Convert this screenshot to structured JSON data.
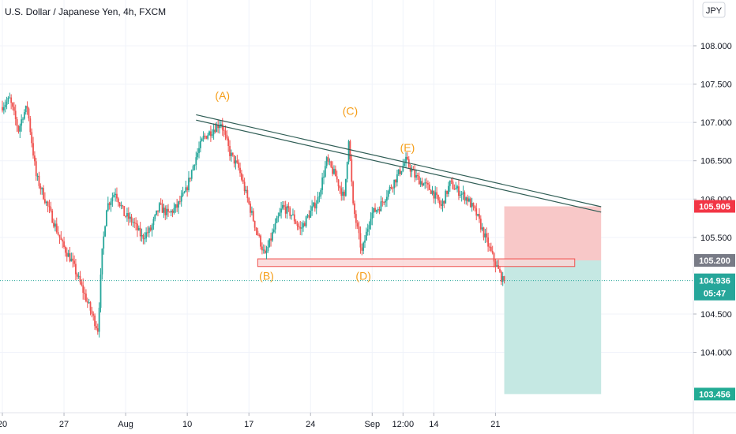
{
  "chart_data": {
    "type": "candlestick",
    "title": "U.S. Dollar / Japanese Yen, 4h, FXCM",
    "currency_label": "JPY",
    "price_axis": {
      "range": [
        103.3,
        108.35
      ],
      "ticks": [
        "108.000",
        "107.500",
        "107.000",
        "106.500",
        "106.000",
        "105.500",
        "104.500",
        "104.000"
      ]
    },
    "time_axis": {
      "labels": [
        {
          "text": "20",
          "date": "2020-07-20"
        },
        {
          "text": "27",
          "date": "2020-07-27"
        },
        {
          "text": "Aug",
          "date": "2020-08-03"
        },
        {
          "text": "10",
          "date": "2020-08-10"
        },
        {
          "text": "17",
          "date": "2020-08-17"
        },
        {
          "text": "24",
          "date": "2020-08-24"
        },
        {
          "text": "Sep",
          "date": "2020-08-31"
        },
        {
          "text": "12:00",
          "date": "2020-09-03 12:00"
        },
        {
          "text": "14",
          "date": "2020-09-07"
        },
        {
          "text": "21",
          "date": "2020-09-14"
        }
      ]
    },
    "price_path": [
      [
        "2020-07-20",
        107.2
      ],
      [
        "2020-07-21",
        107.3
      ],
      [
        "2020-07-22",
        106.9
      ],
      [
        "2020-07-22 12:00",
        107.1
      ],
      [
        "2020-07-23",
        107.2
      ],
      [
        "2020-07-24",
        106.3
      ],
      [
        "2020-07-25",
        106.0
      ],
      [
        "2020-07-26",
        105.7
      ],
      [
        "2020-07-27",
        105.4
      ],
      [
        "2020-07-28",
        105.2
      ],
      [
        "2020-07-29",
        104.9
      ],
      [
        "2020-07-30",
        104.6
      ],
      [
        "2020-07-31",
        104.3
      ],
      [
        "2020-07-31 12:00",
        105.3
      ],
      [
        "2020-08-01",
        105.9
      ],
      [
        "2020-08-02",
        106.1
      ],
      [
        "2020-08-03",
        105.8
      ],
      [
        "2020-08-04",
        105.7
      ],
      [
        "2020-08-05",
        105.5
      ],
      [
        "2020-08-06",
        105.6
      ],
      [
        "2020-08-07",
        105.9
      ],
      [
        "2020-08-08",
        105.8
      ],
      [
        "2020-08-09",
        105.9
      ],
      [
        "2020-08-10",
        106.1
      ],
      [
        "2020-08-11",
        106.5
      ],
      [
        "2020-08-12",
        106.8
      ],
      [
        "2020-08-13",
        106.9
      ],
      [
        "2020-08-14",
        107.0
      ],
      [
        "2020-08-15",
        106.6
      ],
      [
        "2020-08-16",
        106.4
      ],
      [
        "2020-08-17",
        106.0
      ],
      [
        "2020-08-18",
        105.6
      ],
      [
        "2020-08-19",
        105.25
      ],
      [
        "2020-08-20",
        105.6
      ],
      [
        "2020-08-21",
        105.9
      ],
      [
        "2020-08-22",
        105.8
      ],
      [
        "2020-08-23",
        105.6
      ],
      [
        "2020-08-24",
        105.8
      ],
      [
        "2020-08-25",
        106.0
      ],
      [
        "2020-08-26",
        106.5
      ],
      [
        "2020-08-27",
        106.3
      ],
      [
        "2020-08-28",
        106.0
      ],
      [
        "2020-08-28 12:00",
        106.8
      ],
      [
        "2020-08-29",
        105.9
      ],
      [
        "2020-08-30",
        105.3
      ],
      [
        "2020-08-31",
        105.8
      ],
      [
        "2020-09-01",
        105.9
      ],
      [
        "2020-09-02",
        106.1
      ],
      [
        "2020-09-03",
        106.3
      ],
      [
        "2020-09-04",
        106.5
      ],
      [
        "2020-09-05",
        106.3
      ],
      [
        "2020-09-06",
        106.2
      ],
      [
        "2020-09-07",
        106.1
      ],
      [
        "2020-09-08",
        105.9
      ],
      [
        "2020-09-09",
        106.2
      ],
      [
        "2020-09-10",
        106.1
      ],
      [
        "2020-09-11",
        106.0
      ],
      [
        "2020-09-12",
        105.8
      ],
      [
        "2020-09-13",
        105.5
      ],
      [
        "2020-09-14",
        105.2
      ],
      [
        "2020-09-15",
        104.936
      ]
    ],
    "wave_labels": [
      {
        "text": "(A)",
        "date": "2020-08-14",
        "price": 107.3
      },
      {
        "text": "(B)",
        "date": "2020-08-19",
        "price": 104.95
      },
      {
        "text": "(C)",
        "date": "2020-08-28 12:00",
        "price": 107.1
      },
      {
        "text": "(D)",
        "date": "2020-08-30",
        "price": 104.95
      },
      {
        "text": "(E)",
        "date": "2020-09-04",
        "price": 106.62
      }
    ],
    "trendlines": [
      {
        "from": {
          "date": "2020-08-11",
          "price": 107.1
        },
        "to": {
          "date": "2020-09-26",
          "price": 105.9
        }
      },
      {
        "from": {
          "date": "2020-08-11",
          "price": 107.03
        },
        "to": {
          "date": "2020-09-26",
          "price": 105.83
        }
      }
    ],
    "support_zone": {
      "from_date": "2020-08-18",
      "to_date": "2020-09-23",
      "low": 105.12,
      "high": 105.22
    },
    "position": {
      "entry": 105.2,
      "stop": 105.905,
      "target": 103.456,
      "from_date": "2020-09-15",
      "to_date": "2020-09-26",
      "stop_color": "#f8c8c8",
      "target_color": "#c5e8e3"
    },
    "last_price": {
      "value": "104.936",
      "countdown": "05:47"
    },
    "price_tags": [
      {
        "value": "105.905",
        "price": 105.905,
        "color": "#f23645"
      },
      {
        "value": "105.200",
        "price": 105.2,
        "color": "#787b86"
      },
      {
        "value": "103.456",
        "price": 103.456,
        "color": "#22ab94"
      }
    ],
    "colors": {
      "up": "#26a69a",
      "down": "#ef5350",
      "grid": "#f0f3fa",
      "trendline": "#2f5d55",
      "wave": "#f59d16",
      "zone_fill": "#fad4d4",
      "zone_border": "#ef5350"
    }
  }
}
